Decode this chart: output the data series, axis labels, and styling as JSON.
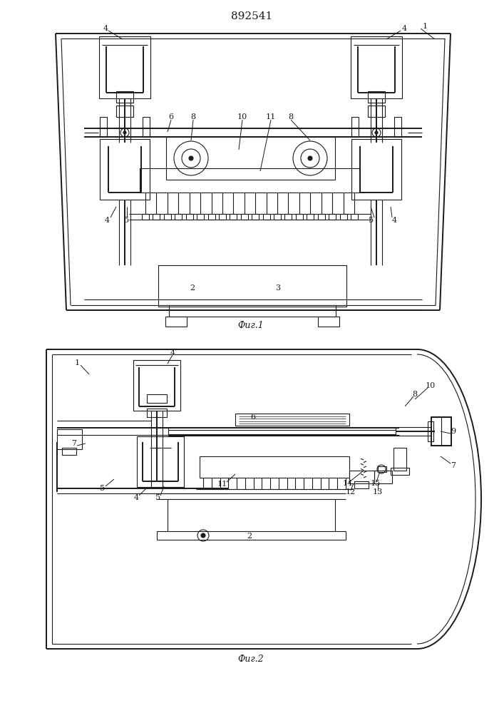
{
  "title": "892541",
  "fig1_label": "Фиг.1",
  "fig2_label": "Фиг.2",
  "bg_color": "#ffffff",
  "line_color": "#1a1a1a",
  "line_width": 0.8
}
